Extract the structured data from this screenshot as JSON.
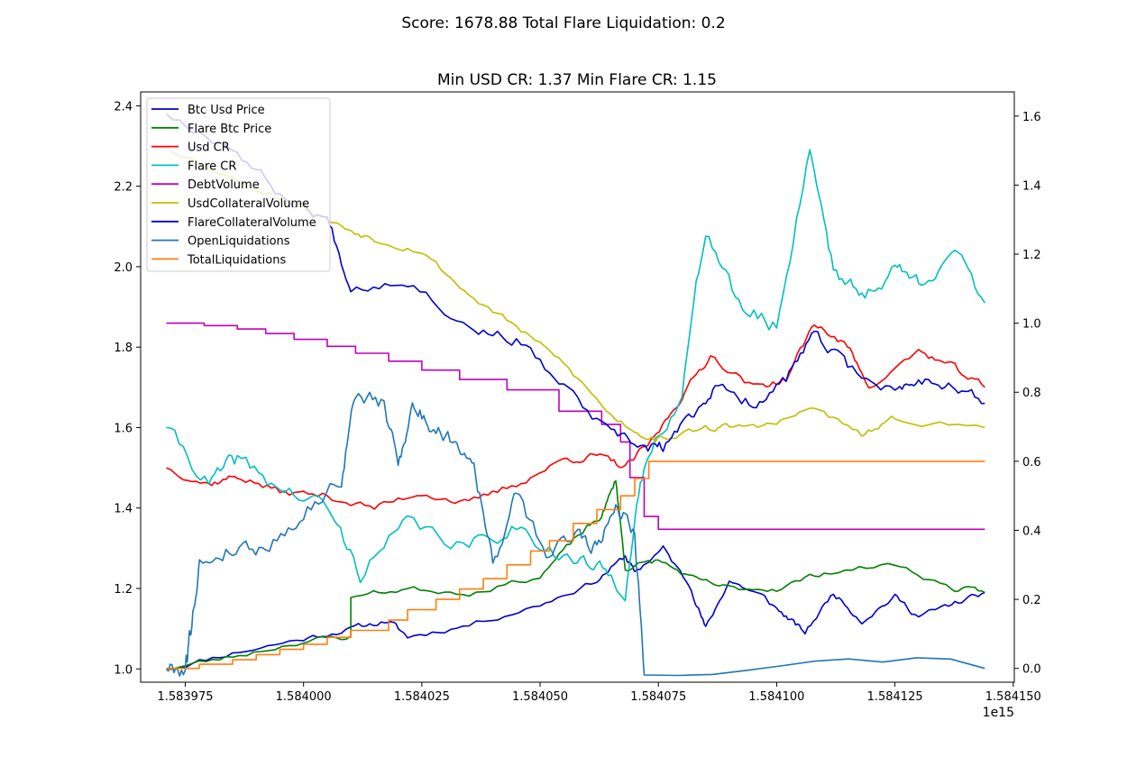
{
  "figure": {
    "suptitle": "Score: 1678.88 Total Flare Liquidation: 0.2"
  },
  "chart_data": {
    "type": "line",
    "title": "Min USD CR: 1.37 Min Flare CR: 1.15",
    "xlabel": "",
    "ylabel": "",
    "x_offset_label": "1e15",
    "grid": false,
    "legend_position": "upper-left",
    "x_range": [
      1.58396557,
      1.58415023
    ],
    "y_left_range": [
      0.967,
      2.4345
    ],
    "y_right_range": [
      -0.04,
      1.67
    ],
    "x_ticks": [
      1.583975,
      1.584,
      1.584025,
      1.58405,
      1.584075,
      1.5841,
      1.584125,
      1.58415
    ],
    "x_tick_labels": [
      "1.583975",
      "1.584000",
      "1.584025",
      "1.584050",
      "1.584075",
      "1.584100",
      "1.584125",
      "1.584150"
    ],
    "y_left_ticks": [
      1.0,
      1.2,
      1.4,
      1.6,
      1.8,
      2.0,
      2.2,
      2.4
    ],
    "y_left_tick_labels": [
      "1.0",
      "1.2",
      "1.4",
      "1.6",
      "1.8",
      "2.0",
      "2.2",
      "2.4"
    ],
    "y_right_ticks": [
      0.0,
      0.2,
      0.4,
      0.6,
      0.8,
      1.0,
      1.2,
      1.4,
      1.6
    ],
    "y_right_tick_labels": [
      "0.0",
      "0.2",
      "0.4",
      "0.6",
      "0.8",
      "1.0",
      "1.2",
      "1.4",
      "1.6"
    ],
    "series": [
      {
        "name": "Btc Usd Price",
        "color": "#0000cd",
        "axis": "left",
        "noise": 0.006,
        "seed": 11,
        "points": [
          [
            1.583971,
            1.0
          ],
          [
            1.583985,
            1.04
          ],
          [
            1.584,
            1.075
          ],
          [
            1.58401,
            1.1
          ],
          [
            1.584018,
            1.12
          ],
          [
            1.584022,
            1.08
          ],
          [
            1.584035,
            1.11
          ],
          [
            1.58405,
            1.16
          ],
          [
            1.584062,
            1.22
          ],
          [
            1.584068,
            1.28
          ],
          [
            1.58407,
            1.24
          ],
          [
            1.584076,
            1.3
          ],
          [
            1.584082,
            1.2
          ],
          [
            1.584085,
            1.1
          ],
          [
            1.58409,
            1.22
          ],
          [
            1.584097,
            1.18
          ],
          [
            1.584102,
            1.13
          ],
          [
            1.584106,
            1.09
          ],
          [
            1.584112,
            1.19
          ],
          [
            1.584118,
            1.12
          ],
          [
            1.584125,
            1.18
          ],
          [
            1.58413,
            1.13
          ],
          [
            1.584137,
            1.16
          ],
          [
            1.584144,
            1.19
          ]
        ]
      },
      {
        "name": "Flare Btc Price",
        "color": "#008000",
        "axis": "left",
        "noise": 0.006,
        "seed": 23,
        "points": [
          [
            1.583971,
            1.0
          ],
          [
            1.583985,
            1.03
          ],
          [
            1.584,
            1.07
          ],
          [
            1.58401,
            1.08
          ],
          [
            1.58401,
            1.18
          ],
          [
            1.584022,
            1.2
          ],
          [
            1.584035,
            1.19
          ],
          [
            1.58405,
            1.23
          ],
          [
            1.584058,
            1.33
          ],
          [
            1.584063,
            1.38
          ],
          [
            1.584066,
            1.47
          ],
          [
            1.584068,
            1.25
          ],
          [
            1.584075,
            1.27
          ],
          [
            1.584083,
            1.22
          ],
          [
            1.58409,
            1.2
          ],
          [
            1.5841,
            1.2
          ],
          [
            1.58411,
            1.24
          ],
          [
            1.584125,
            1.26
          ],
          [
            1.584137,
            1.2
          ],
          [
            1.584144,
            1.19
          ]
        ]
      },
      {
        "name": "Usd CR",
        "color": "#ff0000",
        "axis": "left",
        "noise": 0.008,
        "seed": 37,
        "points": [
          [
            1.583971,
            1.5
          ],
          [
            1.58398,
            1.46
          ],
          [
            1.583986,
            1.48
          ],
          [
            1.583995,
            1.44
          ],
          [
            1.584005,
            1.43
          ],
          [
            1.584015,
            1.4
          ],
          [
            1.584025,
            1.44
          ],
          [
            1.584035,
            1.41
          ],
          [
            1.584045,
            1.46
          ],
          [
            1.584055,
            1.52
          ],
          [
            1.584062,
            1.53
          ],
          [
            1.584068,
            1.5
          ],
          [
            1.584074,
            1.57
          ],
          [
            1.58408,
            1.68
          ],
          [
            1.584086,
            1.78
          ],
          [
            1.584095,
            1.7
          ],
          [
            1.584102,
            1.72
          ],
          [
            1.584108,
            1.86
          ],
          [
            1.584115,
            1.8
          ],
          [
            1.58412,
            1.7
          ],
          [
            1.58413,
            1.79
          ],
          [
            1.584137,
            1.75
          ],
          [
            1.584144,
            1.7
          ]
        ]
      },
      {
        "name": "Flare CR",
        "color": "#00bfbf",
        "axis": "left",
        "noise": 0.018,
        "seed": 41,
        "points": [
          [
            1.583971,
            1.6
          ],
          [
            1.58398,
            1.46
          ],
          [
            1.583986,
            1.52
          ],
          [
            1.583995,
            1.45
          ],
          [
            1.584005,
            1.4
          ],
          [
            1.584012,
            1.24
          ],
          [
            1.584022,
            1.36
          ],
          [
            1.584035,
            1.3
          ],
          [
            1.584045,
            1.36
          ],
          [
            1.584055,
            1.28
          ],
          [
            1.584062,
            1.25
          ],
          [
            1.584068,
            1.2
          ],
          [
            1.584072,
            1.5
          ],
          [
            1.58408,
            1.7
          ],
          [
            1.584085,
            2.1
          ],
          [
            1.584092,
            1.9
          ],
          [
            1.5841,
            1.85
          ],
          [
            1.584107,
            2.3
          ],
          [
            1.584112,
            2.0
          ],
          [
            1.584118,
            1.92
          ],
          [
            1.584125,
            2.0
          ],
          [
            1.58413,
            1.96
          ],
          [
            1.584137,
            2.04
          ],
          [
            1.584144,
            1.91
          ]
        ]
      },
      {
        "name": "DebtVolume",
        "color": "#bf00bf",
        "axis": "right",
        "type": "steps",
        "points": [
          [
            1.583971,
            1.0
          ],
          [
            1.583979,
            0.993
          ],
          [
            1.583986,
            0.983
          ],
          [
            1.583992,
            0.97
          ],
          [
            1.583998,
            0.953
          ],
          [
            1.584005,
            0.933
          ],
          [
            1.584011,
            0.913
          ],
          [
            1.584018,
            0.89
          ],
          [
            1.584025,
            0.864
          ],
          [
            1.584033,
            0.837
          ],
          [
            1.584043,
            0.807
          ],
          [
            1.584054,
            0.745
          ],
          [
            1.584063,
            0.707
          ],
          [
            1.584067,
            0.656
          ],
          [
            1.584069,
            0.553
          ],
          [
            1.584072,
            0.44
          ],
          [
            1.584075,
            0.403
          ],
          [
            1.584144,
            0.403
          ]
        ]
      },
      {
        "name": "UsdCollateralVolume",
        "color": "#bfbf00",
        "axis": "left",
        "noise": 0.007,
        "seed": 53,
        "points": [
          [
            1.583971,
            2.3
          ],
          [
            1.583985,
            2.22
          ],
          [
            1.583998,
            2.16
          ],
          [
            1.584008,
            2.1
          ],
          [
            1.584015,
            2.07
          ],
          [
            1.584025,
            2.04
          ],
          [
            1.584035,
            1.93
          ],
          [
            1.584045,
            1.85
          ],
          [
            1.584055,
            1.76
          ],
          [
            1.584065,
            1.63
          ],
          [
            1.584072,
            1.58
          ],
          [
            1.584076,
            1.57
          ],
          [
            1.584085,
            1.6
          ],
          [
            1.58409,
            1.6
          ],
          [
            1.5841,
            1.61
          ],
          [
            1.584108,
            1.65
          ],
          [
            1.584118,
            1.58
          ],
          [
            1.584125,
            1.62
          ],
          [
            1.584144,
            1.6
          ]
        ]
      },
      {
        "name": "FlareCollateralVolume",
        "color": "#0000cd",
        "axis": "left",
        "noise": 0.012,
        "seed": 67,
        "points": [
          [
            1.583971,
            2.38
          ],
          [
            1.583985,
            2.3
          ],
          [
            1.583995,
            2.18
          ],
          [
            1.584005,
            2.12
          ],
          [
            1.58401,
            1.95
          ],
          [
            1.584022,
            1.97
          ],
          [
            1.584035,
            1.85
          ],
          [
            1.584045,
            1.82
          ],
          [
            1.584055,
            1.7
          ],
          [
            1.584065,
            1.58
          ],
          [
            1.584072,
            1.55
          ],
          [
            1.584076,
            1.55
          ],
          [
            1.584082,
            1.63
          ],
          [
            1.584087,
            1.7
          ],
          [
            1.584095,
            1.66
          ],
          [
            1.584102,
            1.72
          ],
          [
            1.584108,
            1.83
          ],
          [
            1.584115,
            1.75
          ],
          [
            1.584125,
            1.69
          ],
          [
            1.58413,
            1.72
          ],
          [
            1.584137,
            1.71
          ],
          [
            1.584144,
            1.66
          ]
        ]
      },
      {
        "name": "OpenLiquidations",
        "color": "#1f77b4",
        "axis": "right",
        "noise": 0.02,
        "seed": 79,
        "points": [
          [
            1.583971,
            0.0
          ],
          [
            1.583975,
            0.0
          ],
          [
            1.583976,
            0.1
          ],
          [
            1.583978,
            0.3
          ],
          [
            1.583985,
            0.35
          ],
          [
            1.583992,
            0.35
          ],
          [
            1.584,
            0.45
          ],
          [
            1.584008,
            0.55
          ],
          [
            1.584011,
            0.8
          ],
          [
            1.584017,
            0.76
          ],
          [
            1.58402,
            0.6
          ],
          [
            1.584023,
            0.76
          ],
          [
            1.584027,
            0.7
          ],
          [
            1.584032,
            0.66
          ],
          [
            1.584036,
            0.6
          ],
          [
            1.58404,
            0.3
          ],
          [
            1.584045,
            0.5
          ],
          [
            1.584052,
            0.32
          ],
          [
            1.584058,
            0.4
          ],
          [
            1.584062,
            0.35
          ],
          [
            1.584066,
            0.48
          ],
          [
            1.58407,
            0.4
          ],
          [
            1.584072,
            0.0
          ],
          [
            1.584144,
            0.0
          ]
        ]
      },
      {
        "name": "TotalLiquidations",
        "color": "#ff7f0e",
        "axis": "right",
        "type": "steps",
        "points": [
          [
            1.583971,
            0.0
          ],
          [
            1.583978,
            0.012
          ],
          [
            1.583985,
            0.025
          ],
          [
            1.58399,
            0.04
          ],
          [
            1.583995,
            0.055
          ],
          [
            1.584,
            0.07
          ],
          [
            1.584005,
            0.09
          ],
          [
            1.58401,
            0.11
          ],
          [
            1.584018,
            0.14
          ],
          [
            1.584022,
            0.17
          ],
          [
            1.584028,
            0.2
          ],
          [
            1.584033,
            0.23
          ],
          [
            1.584038,
            0.26
          ],
          [
            1.584043,
            0.3
          ],
          [
            1.584048,
            0.34
          ],
          [
            1.584052,
            0.37
          ],
          [
            1.584057,
            0.42
          ],
          [
            1.584062,
            0.46
          ],
          [
            1.584067,
            0.5
          ],
          [
            1.58407,
            0.55
          ],
          [
            1.584073,
            0.6
          ],
          [
            1.584144,
            0.6
          ]
        ]
      }
    ]
  }
}
